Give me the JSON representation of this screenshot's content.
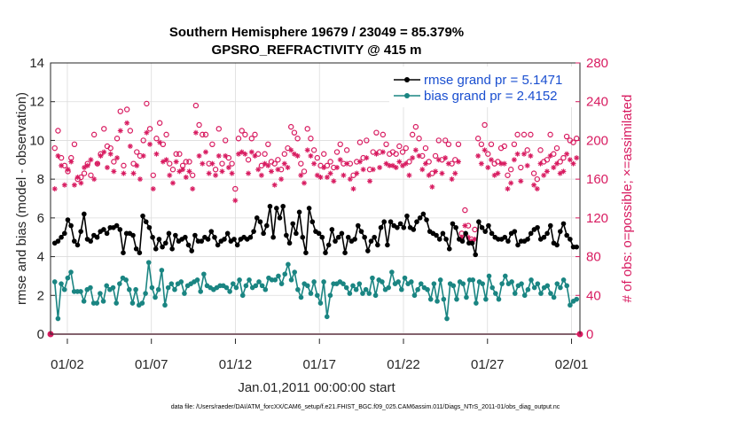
{
  "chart_data": {
    "type": "line",
    "title": "Southern Hemisphere 19679 / 23049 = 85.379%",
    "subtitle": "GPSRO_REFRACTIVITY @ 415 m",
    "xlabel": "Jan.01,2011 00:00:00 start",
    "ylabel_left": "rmse and bias (model - observation)",
    "ylabel_right": "# of obs: o=possible; ×=assimilated",
    "footer": "data file: /Users/raeder/DAI/ATM_forcXX/CAM6_setup/f.e21.FHIST_BGC.f09_025.CAM6assim.011/Diags_NTrS_2011-01/obs_diag_output.nc",
    "xlim": [
      0,
      31.5
    ],
    "ylim_left": [
      0,
      14
    ],
    "ylim_right": [
      0,
      280
    ],
    "grid": true,
    "legend_placement": "top-right",
    "colors": {
      "rmse": "#000000",
      "bias": "#1a8582",
      "obs": "#d81b60",
      "zero": "#e0a0b4",
      "legend_text": "#1a4fd0"
    },
    "x_ticks": [
      {
        "value": 1,
        "label": "01/02"
      },
      {
        "value": 6,
        "label": "01/07"
      },
      {
        "value": 11,
        "label": "01/12"
      },
      {
        "value": 16,
        "label": "01/17"
      },
      {
        "value": 21,
        "label": "01/22"
      },
      {
        "value": 26,
        "label": "01/27"
      },
      {
        "value": 31,
        "label": "02/01"
      }
    ],
    "y_ticks_left": [
      0,
      2,
      4,
      6,
      8,
      10,
      12,
      14
    ],
    "y_ticks_right": [
      0,
      40,
      80,
      120,
      160,
      200,
      240,
      280
    ],
    "series": [
      {
        "name": "rmse grand pr = 5.1471",
        "axis": "left",
        "values": [
          4.7,
          4.8,
          5.0,
          5.2,
          5.9,
          5.6,
          4.8,
          4.6,
          5.3,
          6.2,
          4.9,
          4.8,
          5.1,
          5.0,
          5.3,
          5.4,
          5.2,
          5.5,
          5.5,
          5.6,
          5.4,
          4.2,
          5.2,
          5.2,
          5.1,
          4.4,
          4.2,
          6.1,
          5.8,
          5.5,
          5.0,
          4.4,
          4.9,
          4.5,
          4.7,
          5.2,
          4.4,
          5.1,
          4.8,
          4.9,
          5.0,
          4.6,
          4.3,
          5.1,
          4.8,
          4.8,
          5.0,
          4.9,
          5.3,
          5.0,
          4.6,
          4.8,
          4.9,
          5.2,
          4.8,
          4.9,
          4.6,
          4.9,
          5.0,
          4.9,
          5.0,
          5.3,
          6.0,
          5.8,
          5.2,
          5.6,
          6.6,
          5.0,
          6.5,
          6.0,
          6.6,
          5.1,
          4.7,
          5.7,
          5.2,
          6.3,
          5.0,
          4.2,
          6.5,
          5.8,
          5.3,
          5.2,
          5.0,
          4.2,
          4.6,
          5.4,
          4.8,
          5.0,
          5.2,
          4.2,
          5.0,
          4.8,
          4.9,
          5.6,
          5.3,
          5.0,
          4.3,
          4.8,
          5.0,
          4.6,
          5.5,
          5.8,
          4.6,
          5.8,
          5.6,
          5.5,
          5.7,
          5.5,
          6.1,
          5.5,
          5.4,
          5.8,
          6.0,
          6.2,
          5.9,
          5.3,
          5.2,
          5.1,
          4.9,
          5.2,
          4.9,
          4.4,
          5.7,
          5.5,
          4.9,
          4.8,
          5.2,
          4.7,
          4.7,
          4.1,
          5.8,
          5.5,
          5.3,
          5.6,
          5.2,
          5.0,
          4.9,
          4.9,
          5.0,
          4.8,
          5.2,
          5.3,
          4.6,
          4.8,
          4.8,
          4.9,
          5.2,
          5.4,
          5.5,
          4.9,
          5.0,
          5.2,
          5.6,
          4.7,
          4.6,
          5.3,
          5.7,
          5.1,
          4.9,
          4.5,
          4.5
        ]
      },
      {
        "name": "bias grand pr = 2.4152",
        "axis": "left",
        "values": [
          2.7,
          0.8,
          2.6,
          2.3,
          2.9,
          3.2,
          2.2,
          2.2,
          2.2,
          1.7,
          2.3,
          2.4,
          1.6,
          1.6,
          2.1,
          1.7,
          2.5,
          2.3,
          2.4,
          1.6,
          2.6,
          2.9,
          2.8,
          2.3,
          1.6,
          2.3,
          1.5,
          1.6,
          2.1,
          3.7,
          2.4,
          1.9,
          2.3,
          3.3,
          1.5,
          2.4,
          2.6,
          2.3,
          2.6,
          2.7,
          2.1,
          2.5,
          2.6,
          2.7,
          2.8,
          2.2,
          3.1,
          2.5,
          2.4,
          2.3,
          2.4,
          2.5,
          2.5,
          2.4,
          2.2,
          2.6,
          2.4,
          2.8,
          2.0,
          2.5,
          2.8,
          2.4,
          2.5,
          2.7,
          2.5,
          2.3,
          2.9,
          2.8,
          2.8,
          3.0,
          2.6,
          3.1,
          3.6,
          2.8,
          3.2,
          2.3,
          1.9,
          2.6,
          2.5,
          2.1,
          2.7,
          2.0,
          1.6,
          2.7,
          0.9,
          2.0,
          2.6,
          2.6,
          2.7,
          2.6,
          2.4,
          2.1,
          2.5,
          2.3,
          2.6,
          2.1,
          2.3,
          2.1,
          2.9,
          2.0,
          2.8,
          2.7,
          2.3,
          2.4,
          3.2,
          2.6,
          2.7,
          2.3,
          2.9,
          2.6,
          2.7,
          2.0,
          2.3,
          2.6,
          2.4,
          2.3,
          1.8,
          2.6,
          1.7,
          2.8,
          1.8,
          0.8,
          2.6,
          2.5,
          1.8,
          2.7,
          2.6,
          1.9,
          2.8,
          2.8,
          1.6,
          2.7,
          2.6,
          1.8,
          3.0,
          2.4,
          2.1,
          1.8,
          2.6,
          3.0,
          2.6,
          2.7,
          2.1,
          2.5,
          2.6,
          2.0,
          2.3,
          2.8,
          2.4,
          2.6,
          2.1,
          2.4,
          2.5,
          2.1,
          1.9,
          2.6,
          2.4,
          2.8,
          2.5,
          1.5,
          1.7,
          1.8
        ]
      },
      {
        "name": "possible",
        "axis": "right",
        "values": [
          192,
          210,
          182,
          174,
          168,
          182,
          196,
          160,
          162,
          166,
          176,
          164,
          206,
          176,
          186,
          212,
          194,
          192,
          178,
          202,
          230,
          174,
          232,
          210,
          176,
          188,
          184,
          200,
          238,
          212,
          164,
          202,
          218,
          196,
          206,
          176,
          170,
          186,
          186,
          174,
          178,
          178,
          164,
          236,
          216,
          206,
          206,
          176,
          196,
          170,
          212,
          176,
          200,
          182,
          176,
          150,
          202,
          210,
          206,
          180,
          202,
          206,
          186,
          174,
          186,
          196,
          178,
          176,
          180,
          170,
          186,
          192,
          214,
          208,
          202,
          176,
          168,
          212,
          202,
          190,
          182,
          174,
          186,
          174,
          178,
          172,
          188,
          196,
          176,
          190,
          176,
          164,
          178,
          198,
          182,
          200,
          170,
          188,
          208,
          188,
          206,
          196,
          186,
          188,
          186,
          194,
          188,
          192,
          178,
          206,
          214,
          202,
          184,
          192,
          178,
          166,
          184,
          200,
          180,
          200,
          196,
          176,
          180,
          196,
          104,
          128,
          112,
          98,
          108,
          202,
          196,
          216,
          186,
          196,
          176,
          178,
          192,
          194,
          164,
          170,
          196,
          206,
          172,
          206,
          190,
          206,
          166,
          160,
          190,
          178,
          180,
          206,
          186,
          192,
          178,
          182,
          204,
          200,
          198,
          202
        ]
      },
      {
        "name": "assimilated",
        "axis": "right",
        "values": [
          150,
          184,
          174,
          154,
          170,
          178,
          154,
          162,
          156,
          172,
          174,
          180,
          160,
          176,
          184,
          188,
          172,
          186,
          168,
          182,
          210,
          166,
          218,
          194,
          166,
          174,
          160,
          184,
          208,
          196,
          150,
          186,
          198,
          178,
          180,
          164,
          156,
          178,
          168,
          170,
          162,
          168,
          150,
          208,
          184,
          176,
          188,
          166,
          176,
          164,
          184,
          168,
          184,
          172,
          166,
          138,
          186,
          188,
          186,
          166,
          188,
          184,
          170,
          164,
          176,
          174,
          168,
          154,
          170,
          160,
          176,
          172,
          190,
          186,
          184,
          164,
          156,
          190,
          184,
          176,
          164,
          162,
          172,
          162,
          166,
          158,
          172,
          180,
          164,
          176,
          160,
          150,
          166,
          178,
          170,
          182,
          158,
          170,
          186,
          172,
          188,
          176,
          174,
          174,
          172,
          178,
          174,
          176,
          164,
          182,
          190,
          184,
          170,
          176,
          164,
          152,
          168,
          180,
          166,
          182,
          176,
          160,
          166,
          178,
          100,
          112,
          100,
          96,
          98,
          184,
          176,
          190,
          172,
          180,
          164,
          166,
          176,
          176,
          150,
          156,
          180,
          186,
          158,
          186,
          174,
          184,
          154,
          150,
          176,
          164,
          168,
          184,
          172,
          176,
          166,
          168,
          186,
          180,
          176,
          182
        ]
      }
    ]
  }
}
